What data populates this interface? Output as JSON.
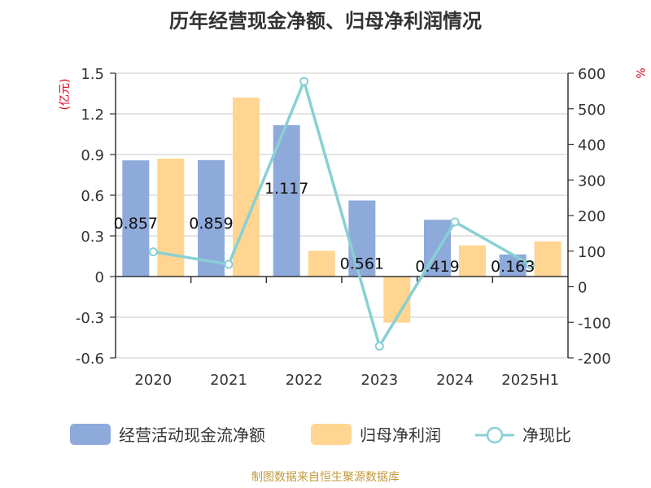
{
  "colors": {
    "operating_cash_flow": "#8eaadb",
    "net_profit": "#ffd591",
    "ratio_line": "#88d0d4",
    "unit_label": "#d9001b",
    "source_text": "#c49a3c"
  },
  "chart_data": {
    "type": "bar",
    "title": "历年经营现金净额、归母净利润情况",
    "categories": [
      "2020",
      "2021",
      "2022",
      "2023",
      "2024",
      "2025H1"
    ],
    "y_left": {
      "unit": "(亿元)",
      "ylim": [
        -0.6,
        1.5
      ],
      "ticks": [
        -0.6,
        -0.3,
        0,
        0.3,
        0.6,
        0.9,
        1.2,
        1.5
      ],
      "tick_labels": [
        "-0.6",
        "-0.3",
        "0",
        "0.3",
        "0.6",
        "0.9",
        "1.2",
        "1.5"
      ]
    },
    "y_right": {
      "unit": "%",
      "ylim": [
        -200,
        600
      ],
      "ticks": [
        -200,
        -100,
        0,
        100,
        200,
        300,
        400,
        500,
        600
      ],
      "tick_labels": [
        "-200",
        "-100",
        "0",
        "100",
        "200",
        "300",
        "400",
        "500",
        "600"
      ]
    },
    "series": [
      {
        "name": "经营活动现金流净额",
        "type": "bar",
        "axis": "left",
        "values": [
          0.857,
          0.859,
          1.117,
          0.561,
          0.419,
          0.163
        ],
        "data_labels": [
          "0.857",
          "0.859",
          "1.117",
          "0.561",
          "0.419",
          "0.163"
        ]
      },
      {
        "name": "归母净利润",
        "type": "bar",
        "axis": "left",
        "values": [
          0.87,
          1.32,
          0.19,
          -0.34,
          0.23,
          0.26
        ]
      },
      {
        "name": "净现比",
        "type": "line",
        "axis": "right",
        "values": [
          98,
          63,
          577,
          -167,
          182,
          62
        ]
      }
    ],
    "grid": true,
    "legend_position": "bottom"
  },
  "footer": {
    "source": "制图数据来自恒生聚源数据库"
  }
}
